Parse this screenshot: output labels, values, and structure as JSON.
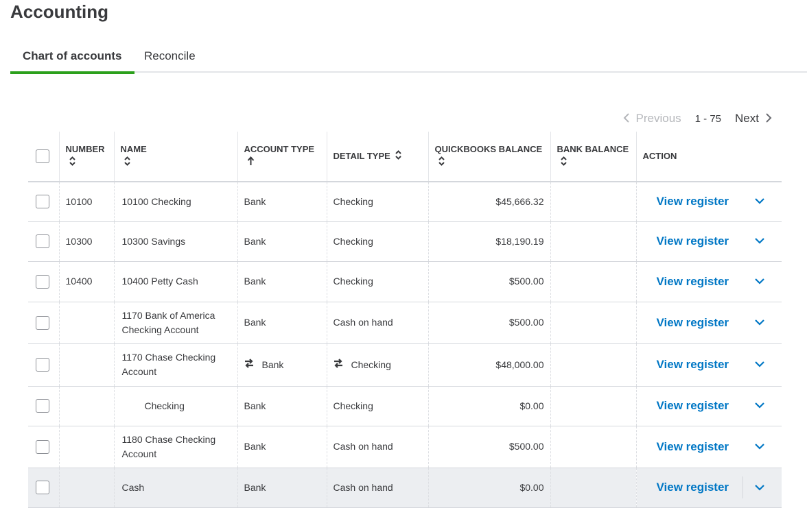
{
  "header": {
    "title": "Accounting"
  },
  "tabs": [
    {
      "label": "Chart of accounts",
      "active": true
    },
    {
      "label": "Reconcile"
    }
  ],
  "pagination": {
    "previous": "Previous",
    "range": "1 - 75",
    "next": "Next"
  },
  "table": {
    "columns": [
      {
        "label": "NUMBER",
        "sort": "both"
      },
      {
        "label": "NAME",
        "sort": "both"
      },
      {
        "label": "ACCOUNT TYPE",
        "sort": "asc"
      },
      {
        "label": "DETAIL TYPE",
        "sort": "both"
      },
      {
        "label": "QUICKBOOKS BALANCE",
        "sort": "both"
      },
      {
        "label": "BANK BALANCE",
        "sort": "both"
      },
      {
        "label": "ACTION"
      }
    ],
    "rows": [
      {
        "number": "10100",
        "name": "10100 Checking",
        "account_type": "Bank",
        "detail_type": "Checking",
        "balance": "$45,666.32",
        "action": "View register"
      },
      {
        "number": "10300",
        "name": "10300 Savings",
        "account_type": "Bank",
        "detail_type": "Checking",
        "balance": "$18,190.19",
        "action": "View register"
      },
      {
        "number": "10400",
        "name": "10400 Petty Cash",
        "account_type": "Bank",
        "detail_type": "Checking",
        "balance": "$500.00",
        "action": "View register"
      },
      {
        "name": "1170 Bank of America Checking Account",
        "account_type": "Bank",
        "detail_type": "Cash on hand",
        "balance": "$500.00",
        "action": "View register"
      },
      {
        "name": "1170 Chase Checking Account",
        "account_type": "Bank",
        "detail_type": "Checking",
        "balance": "$48,000.00",
        "action": "View register",
        "linked": true
      },
      {
        "name": "Checking",
        "account_type": "Bank",
        "detail_type": "Checking",
        "balance": "$0.00",
        "action": "View register",
        "sub": true
      },
      {
        "name": "1180 Chase Checking Account",
        "account_type": "Bank",
        "detail_type": "Cash on hand",
        "balance": "$500.00",
        "action": "View register"
      },
      {
        "name": "Cash",
        "account_type": "Bank",
        "detail_type": "Cash on hand",
        "balance": "$0.00",
        "action": "View register",
        "highlight": true
      }
    ]
  }
}
